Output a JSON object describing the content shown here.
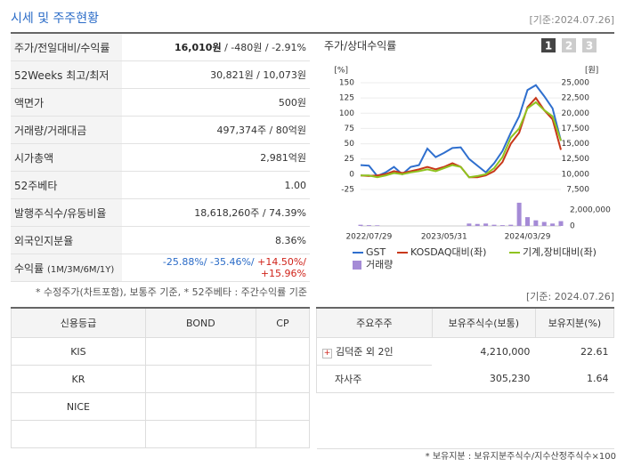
{
  "header": {
    "title": "시세 및 주주현황",
    "date": "[기준:2024.07.26]"
  },
  "quote_table": {
    "rows": [
      {
        "label": "주가/전일대비/수익률",
        "parts": [
          "16,010원",
          " / -480원",
          " / -2.91%"
        ]
      },
      {
        "label": "52Weeks 최고/최저",
        "parts": [
          "30,821원 / 10,073원"
        ]
      },
      {
        "label": "액면가",
        "parts": [
          "500원"
        ]
      },
      {
        "label": "거래량/거래대금",
        "parts": [
          "497,374주 / 80억원"
        ]
      },
      {
        "label": "시가총액",
        "parts": [
          "2,981억원"
        ]
      },
      {
        "label": "52주베타",
        "parts": [
          "1.00"
        ]
      },
      {
        "label": "발행주식수/유동비율",
        "parts": [
          "18,618,260주 / 74.39%"
        ]
      },
      {
        "label": "외국인지분율",
        "parts": [
          "8.36%"
        ]
      },
      {
        "label": "수익률",
        "note": "(1M/3M/6M/1Y)",
        "parts": [
          "-25.88%/",
          " -35.46%/",
          " +14.50%/",
          " +15.96%"
        ]
      }
    ],
    "footnote": "* 수정주가(차트포함), 보통주 기준, * 52주베타 : 주간수익률 기준"
  },
  "chart_panel": {
    "title": "주가/상대수익률",
    "tabs": [
      "1",
      "2",
      "3"
    ]
  },
  "chart_data": {
    "type": "line",
    "ylabel": "[%]",
    "y2label": "[원]",
    "categories": [
      null,
      "2022/07/29",
      null,
      null,
      null,
      null,
      null,
      null,
      null,
      null,
      "2023/05/31",
      null,
      null,
      null,
      null,
      null,
      null,
      null,
      null,
      null,
      "2024/03/29",
      null,
      null,
      null,
      null
    ],
    "ylim": [
      -25,
      150
    ],
    "yticks": [
      -25,
      0,
      25,
      50,
      75,
      100,
      125,
      150
    ],
    "y2lim": [
      7500,
      25000
    ],
    "y2ticks": [
      {
        "value": 7500,
        "label": "7,500"
      },
      {
        "value": 10000,
        "label": "10,000"
      },
      {
        "value": 12500,
        "label": "12,500"
      },
      {
        "value": 15000,
        "label": "15,000"
      },
      {
        "value": 17500,
        "label": "17,500"
      },
      {
        "value": 20000,
        "label": "20,000"
      },
      {
        "value": 22500,
        "label": "22,500"
      },
      {
        "value": 25000,
        "label": "25,000"
      }
    ],
    "series": [
      {
        "name": "GST",
        "color": "#2f6fce",
        "values": [
          15,
          14,
          -3,
          3,
          12,
          0,
          12,
          15,
          42,
          28,
          35,
          43,
          44,
          25,
          14,
          3,
          18,
          38,
          68,
          95,
          138,
          146,
          128,
          108,
          55
        ]
      },
      {
        "name": "KOSDAQ대비(좌)",
        "color": "#c8381a",
        "values": [
          -2,
          -3,
          -2,
          0,
          5,
          2,
          5,
          8,
          12,
          8,
          12,
          18,
          12,
          -5,
          -5,
          -2,
          5,
          20,
          50,
          68,
          110,
          125,
          105,
          90,
          40
        ]
      },
      {
        "name": "기계,장비대비(좌)",
        "color": "#8fc31f",
        "values": [
          -2,
          -2,
          -5,
          -2,
          2,
          0,
          3,
          5,
          8,
          5,
          10,
          15,
          12,
          -5,
          -3,
          0,
          10,
          28,
          60,
          75,
          108,
          118,
          105,
          95,
          55
        ]
      }
    ],
    "volume": {
      "name": "거래량",
      "color": "#a58bd6",
      "ylim": [
        0,
        4000000
      ],
      "yticks": [
        0,
        {
          "value": 2000000,
          "label": "2,000,000"
        }
      ],
      "values": [
        150000,
        100000,
        80000,
        0,
        0,
        0,
        0,
        0,
        0,
        0,
        0,
        0,
        0,
        300000,
        250000,
        300000,
        150000,
        100000,
        150000,
        2900000,
        1100000,
        700000,
        500000,
        300000,
        600000
      ]
    }
  },
  "credit_table": {
    "headers": [
      "신용등급",
      "BOND",
      "CP"
    ],
    "rows": [
      [
        "KIS"
      ],
      [
        "KR"
      ],
      [
        "NICE"
      ]
    ]
  },
  "holder_table": {
    "date": "[기준: 2024.07.26]",
    "headers": [
      "주요주주",
      "보유주식수(보통)",
      "보유지분(%)"
    ],
    "rows": [
      [
        "김덕준 외 2인",
        "4,210,000",
        "22.61"
      ],
      [
        "자사주",
        "305,230",
        "1.64"
      ]
    ],
    "footnote": "* 보유지분 : 보유지분주식수/지수산정주식수×100"
  }
}
